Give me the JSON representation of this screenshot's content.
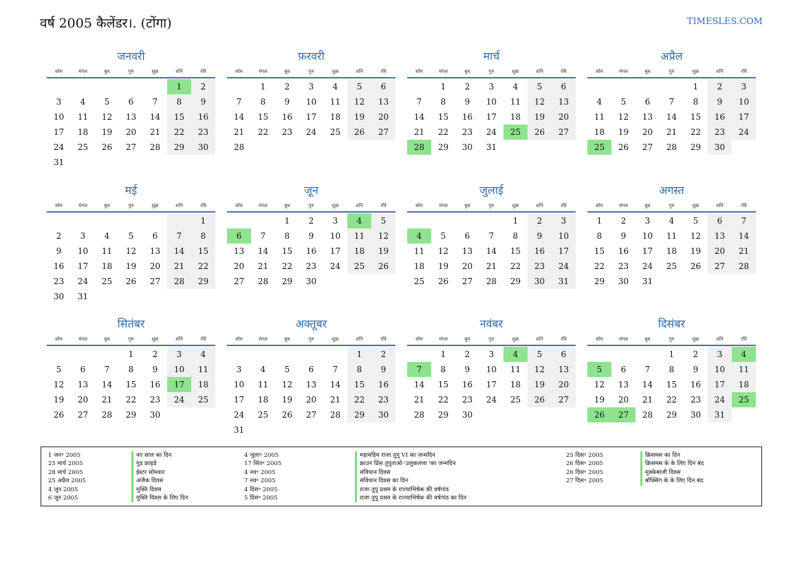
{
  "title": "वर्ष 2005 कैलेंडर।. (टोंगा)",
  "site": "TIMESLES.COM",
  "weekdays": [
    "सोम",
    "मंगल",
    "बुध",
    "गुरु",
    "शुक्र",
    "शनि",
    "रवि"
  ],
  "months": [
    {
      "name": "जनवरी",
      "start": 5,
      "days": 31,
      "holidays": [
        1
      ]
    },
    {
      "name": "फ़रवरी",
      "start": 1,
      "days": 28,
      "holidays": []
    },
    {
      "name": "मार्च",
      "start": 1,
      "days": 31,
      "holidays": [
        25,
        28
      ]
    },
    {
      "name": "अप्रैल",
      "start": 4,
      "days": 30,
      "holidays": [
        25
      ]
    },
    {
      "name": "मई",
      "start": 6,
      "days": 31,
      "holidays": []
    },
    {
      "name": "जून",
      "start": 2,
      "days": 30,
      "holidays": [
        4,
        6
      ]
    },
    {
      "name": "जुलाई",
      "start": 4,
      "days": 31,
      "holidays": [
        4
      ]
    },
    {
      "name": "अगस्त",
      "start": 0,
      "days": 31,
      "holidays": []
    },
    {
      "name": "सितंबर",
      "start": 3,
      "days": 30,
      "holidays": [
        17
      ]
    },
    {
      "name": "अक्तूबर",
      "start": 5,
      "days": 31,
      "holidays": []
    },
    {
      "name": "नवंबर",
      "start": 1,
      "days": 30,
      "holidays": [
        4,
        7
      ]
    },
    {
      "name": "दिसंबर",
      "start": 3,
      "days": 31,
      "holidays": [
        4,
        5,
        25,
        26,
        27
      ]
    }
  ],
  "legend": {
    "col1_dates": [
      "1 जन॰ 2005",
      "25 मार्च 2005",
      "28 मार्च 2005",
      "25 अप्रैल 2005",
      "4 जून 2005",
      "6 जून 2005"
    ],
    "col1_names": [
      "नए साल का दिन",
      "गुड फ्राइडे",
      "ईस्टर सोमवार",
      "अंजैक दिवस",
      "मुक्ति दिवस",
      "मुक्ति दिवस के लिए दिन"
    ],
    "col2_dates": [
      "4 जुला॰ 2005",
      "17 सित॰ 2005",
      "4 नव॰ 2005",
      "7 नव॰ 2005",
      "4 दिस॰ 2005",
      "5 दिस॰ 2005"
    ],
    "col2_names": [
      "महामहिम राजा तुपु VI का जन्मदिन",
      "क्राउन प्रिंस तुपुताओ-'उलुकलला 'का जन्मदिन",
      "संविधान दिवस",
      "संविधान दिवस का दिन",
      "राजा तुपु प्रथम के राज्याभिषेक की वर्षगांठ",
      "राजा तुपु प्रथम के राज्याभिषेक की वर्षगांठ का दिन"
    ],
    "col3_dates": [
      "25 दिस॰ 2005",
      "26 दिस॰ 2005",
      "26 दिस॰ 2005",
      "27 दिस॰ 2005"
    ],
    "col3_names": [
      "क्रिसमस का दिन",
      "क्रिसमस के के लिए दिन बंद",
      "मुक्केबाजी दिवस",
      "बॉक्सिंग के के लिए दिन बंद"
    ]
  }
}
